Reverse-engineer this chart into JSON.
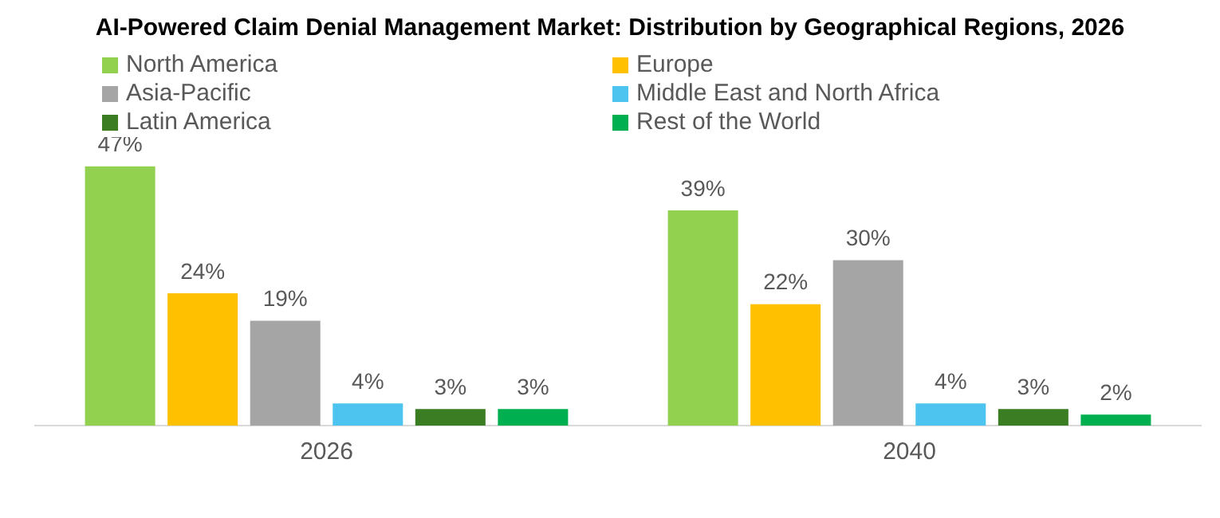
{
  "chart_data": {
    "type": "bar",
    "title": "AI-Powered Claim Denial Management Market: Distribution by Geographical Regions, 2026",
    "categories": [
      "2026",
      "2040"
    ],
    "series": [
      {
        "name": "North America",
        "color": "#92d050",
        "values": [
          47,
          39
        ],
        "value_labels": [
          "47%",
          "39%"
        ]
      },
      {
        "name": "Europe",
        "color": "#ffc000",
        "values": [
          24,
          22
        ],
        "value_labels": [
          "24%",
          "22%"
        ]
      },
      {
        "name": "Asia-Pacific",
        "color": "#a5a5a5",
        "values": [
          19,
          30
        ],
        "value_labels": [
          "19%",
          "30%"
        ]
      },
      {
        "name": "Middle East and North Africa",
        "color": "#4dc3f0",
        "values": [
          4,
          4
        ],
        "value_labels": [
          "4%",
          "4%"
        ]
      },
      {
        "name": "Latin America",
        "color": "#3a7d22",
        "values": [
          3,
          3
        ],
        "value_labels": [
          "3%",
          "3%"
        ]
      },
      {
        "name": "Rest of the World",
        "color": "#00b050",
        "values": [
          3,
          2
        ],
        "value_labels": [
          "3%",
          "2%"
        ]
      }
    ],
    "legend": "top left",
    "grid": false
  }
}
